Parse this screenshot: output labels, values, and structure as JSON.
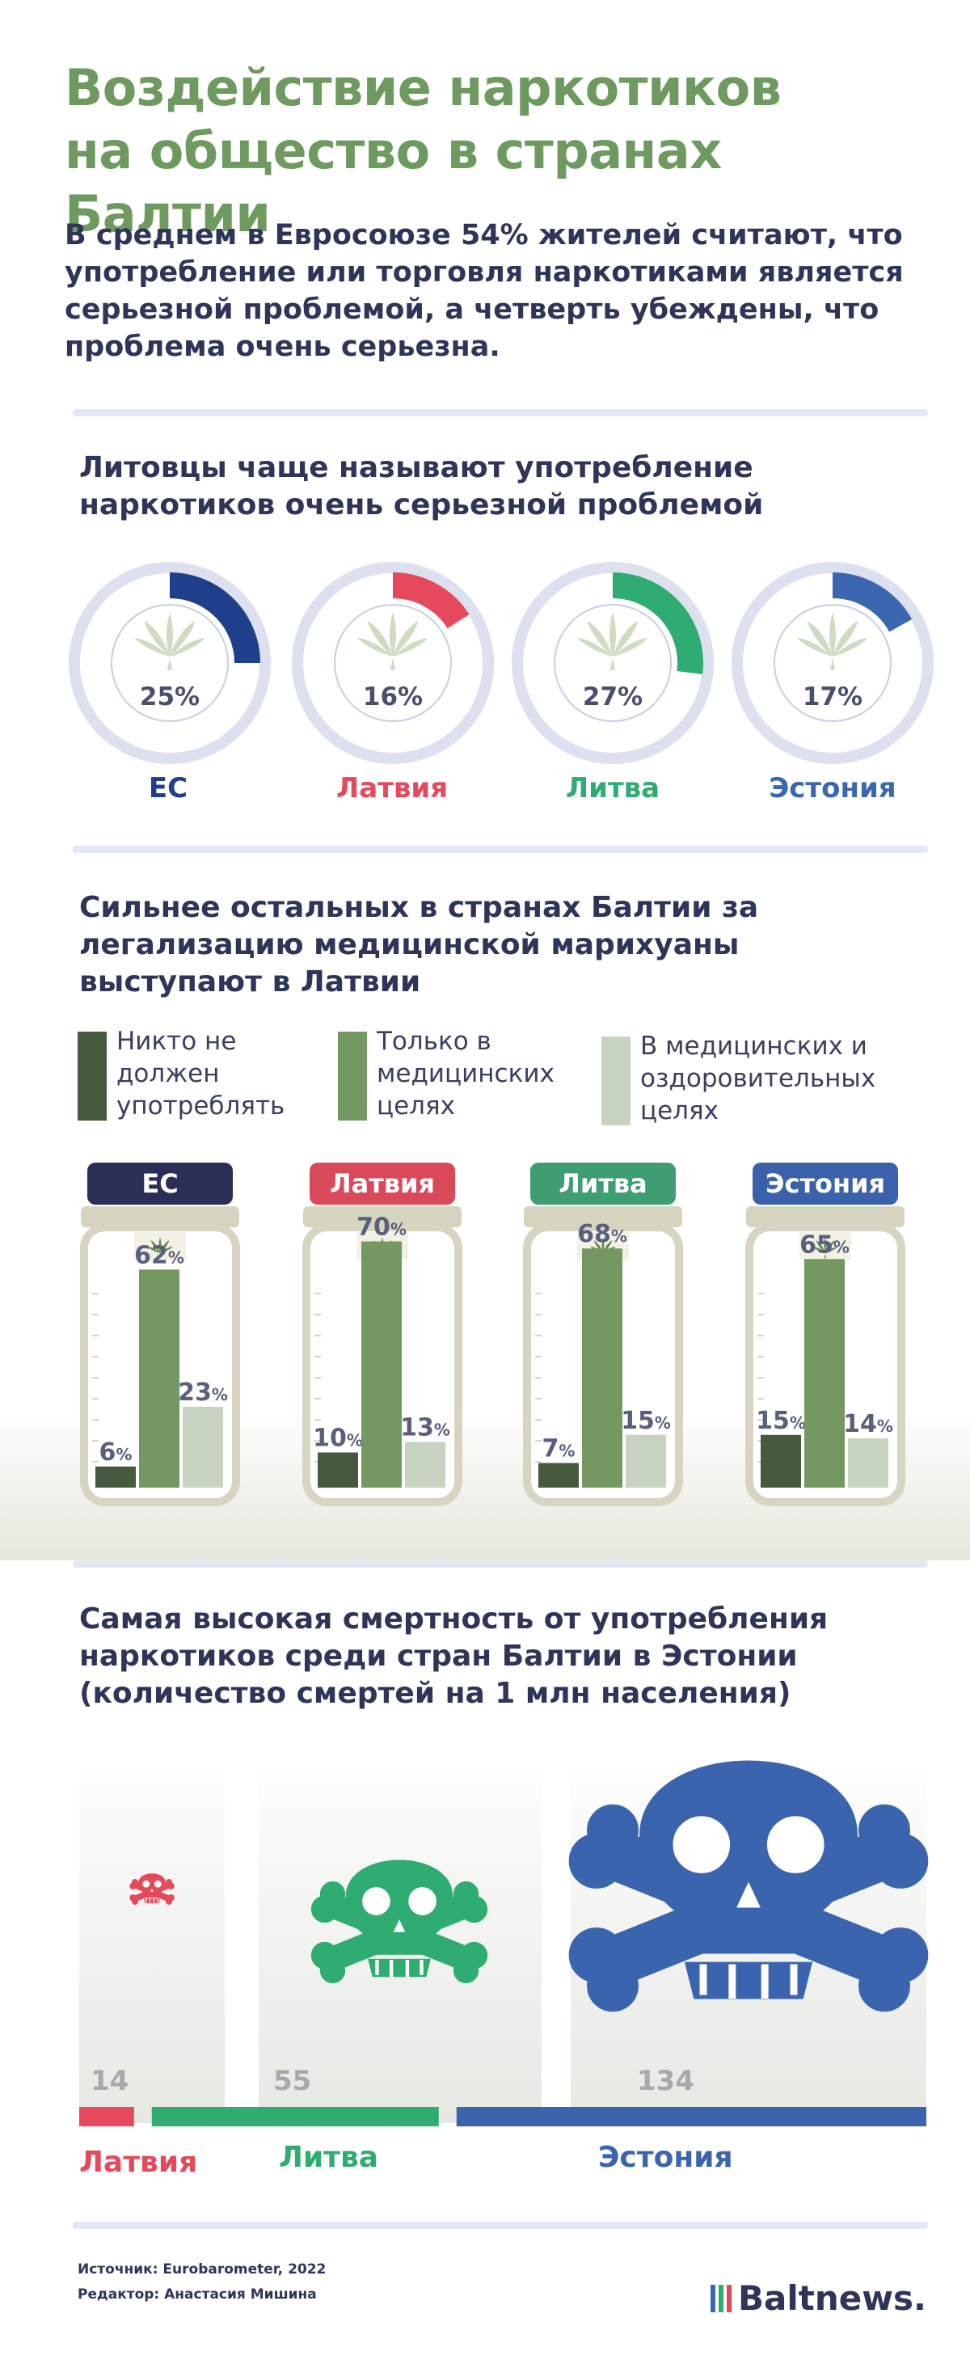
{
  "title_line1": "Воздействие наркотиков",
  "title_line2": "на общество в странах Балтии",
  "intro": "В среднем в Евросоюзе 54% жителей считают, что употребление или торговля наркотиками является серьезной проблемой, а четверть убеждены, что проблема очень серьезна.",
  "section1": {
    "title": "Литовцы чаще называют употребление наркотиков очень серьезной проблемой"
  },
  "section2": {
    "title": "Сильнее остальных в странах Балтии за легализацию медицинской марихуаны выступают в Латвии",
    "legend": [
      {
        "label": "Никто не должен употреблять",
        "color": "#475a3d"
      },
      {
        "label": "Только в медицинских целях",
        "color": "#739862"
      },
      {
        "label": "В медицинских и оздоровительных целях",
        "color": "#c9d3c1"
      }
    ]
  },
  "section3": {
    "title": "Самая высокая смертность от употребления наркотиков среди стран Балтии в Эстонии (количество смертей на 1 млн населения)"
  },
  "footer": {
    "source": "Источник: Eurobarometer, 2022",
    "editor": "Редактор: Анастасия Мишина",
    "logo": "Baltnews."
  },
  "chart_data": [
    {
      "type": "pie",
      "title": "Литовцы чаще называют употребление наркотиков очень серьезной проблемой",
      "categories": [
        "ЕС",
        "Латвия",
        "Литва",
        "Эстония"
      ],
      "values": [
        25,
        16,
        27,
        17
      ],
      "value_labels": [
        "25%",
        "16%",
        "27%",
        "17%"
      ],
      "colors": [
        "#1f3f8a",
        "#e5495b",
        "#2fac72",
        "#3a67b0"
      ]
    },
    {
      "type": "bar",
      "title": "Сильнее остальных в странах Балтии за легализацию медицинской марихуаны выступают в Латвии",
      "categories": [
        "ЕС",
        "Латвия",
        "Литва",
        "Эстония"
      ],
      "cap_colors": [
        "#2b2f57",
        "#d9495a",
        "#3e9d73",
        "#3b61ab"
      ],
      "ylim": [
        0,
        100
      ],
      "series": [
        {
          "name": "Никто не должен употреблять",
          "values": [
            6,
            10,
            7,
            15
          ],
          "color": "#475a3d"
        },
        {
          "name": "Только в медицинских целях",
          "values": [
            62,
            70,
            68,
            65
          ],
          "color": "#739862"
        },
        {
          "name": "В медицинских и оздоровительных целях",
          "values": [
            23,
            13,
            15,
            14
          ],
          "color": "#c9d3c1"
        }
      ]
    },
    {
      "type": "bar",
      "title": "Самая высокая смертность от употребления наркотиков среди стран Балтии в Эстонии (количество смертей на 1 млн населения)",
      "categories": [
        "Латвия",
        "Литва",
        "Эстония"
      ],
      "values": [
        14,
        55,
        134
      ],
      "colors": [
        "#e5495b",
        "#2fac72",
        "#3b64ae"
      ]
    }
  ]
}
